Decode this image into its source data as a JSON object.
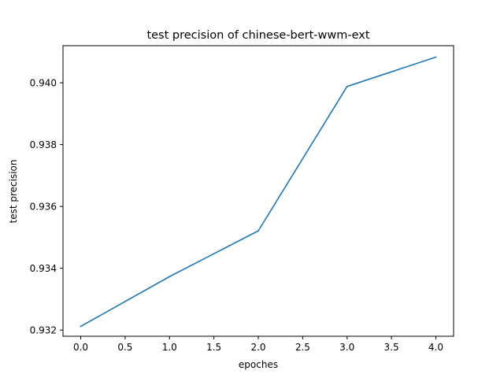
{
  "chart_data": {
    "type": "line",
    "title": "test precision of chinese-bert-wwm-ext",
    "xlabel": "epoches",
    "ylabel": "test precision",
    "xlim": [
      -0.2,
      4.2
    ],
    "ylim": [
      0.9318,
      0.9412
    ],
    "xticks": [
      0.0,
      0.5,
      1.0,
      1.5,
      2.0,
      2.5,
      3.0,
      3.5,
      4.0
    ],
    "xtick_labels": [
      "0.0",
      "0.5",
      "1.0",
      "1.5",
      "2.0",
      "2.5",
      "3.0",
      "3.5",
      "4.0"
    ],
    "yticks": [
      0.932,
      0.934,
      0.936,
      0.938,
      0.94
    ],
    "ytick_labels": [
      "0.932",
      "0.934",
      "0.936",
      "0.938",
      "0.940"
    ],
    "grid": false,
    "series": [
      {
        "color": "#1f77b4",
        "x": [
          0,
          1,
          2,
          3,
          4
        ],
        "y": [
          0.93212,
          0.93373,
          0.93521,
          0.93988,
          0.94083
        ]
      }
    ]
  }
}
